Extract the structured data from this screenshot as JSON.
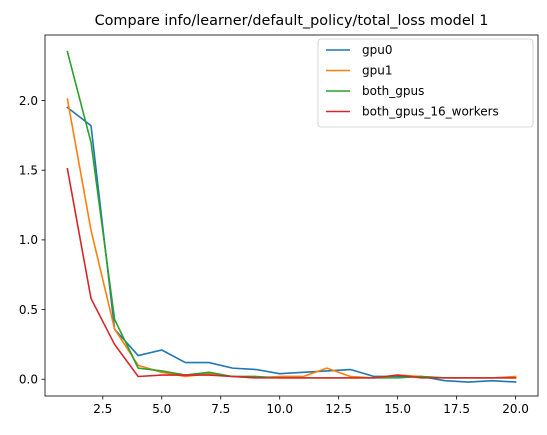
{
  "chart_data": {
    "type": "line",
    "title": "Compare info/learner/default_policy/total_loss model 1",
    "xlabel": "",
    "ylabel": "",
    "xlim": [
      0.05,
      20.95
    ],
    "ylim": [
      -0.12,
      2.47
    ],
    "xticks": [
      2.5,
      5.0,
      7.5,
      10.0,
      12.5,
      15.0,
      17.5,
      20.0
    ],
    "xtick_labels": [
      "2.5",
      "5.0",
      "7.5",
      "10.0",
      "12.5",
      "15.0",
      "17.5",
      "20.0"
    ],
    "yticks": [
      0.0,
      0.5,
      1.0,
      1.5,
      2.0
    ],
    "ytick_labels": [
      "0.0",
      "0.5",
      "1.0",
      "1.5",
      "2.0"
    ],
    "grid": false,
    "legend_position": "top-right",
    "x": [
      1,
      2,
      3,
      4,
      5,
      6,
      7,
      8,
      9,
      10,
      11,
      12,
      13,
      14,
      15,
      16,
      17,
      18,
      19,
      20
    ],
    "series": [
      {
        "name": "gpu0",
        "color": "#1f77b4",
        "values": [
          1.95,
          1.82,
          0.36,
          0.17,
          0.21,
          0.12,
          0.12,
          0.08,
          0.07,
          0.04,
          0.05,
          0.06,
          0.07,
          0.02,
          0.02,
          0.02,
          -0.01,
          -0.02,
          -0.01,
          -0.02
        ]
      },
      {
        "name": "gpu1",
        "color": "#ff7f0e",
        "values": [
          2.01,
          1.07,
          0.36,
          0.1,
          0.05,
          0.02,
          0.04,
          0.02,
          0.01,
          0.02,
          0.02,
          0.08,
          0.02,
          0.01,
          0.03,
          0.02,
          0.01,
          0.01,
          0.01,
          0.02
        ]
      },
      {
        "name": "both_gpus",
        "color": "#2ca02c",
        "values": [
          2.35,
          1.7,
          0.43,
          0.08,
          0.06,
          0.03,
          0.05,
          0.02,
          0.02,
          0.01,
          0.01,
          0.01,
          0.01,
          0.01,
          0.01,
          0.02,
          0.01,
          0.01,
          0.01,
          0.01
        ]
      },
      {
        "name": "both_gpus_16_workers",
        "color": "#d62728",
        "values": [
          1.51,
          0.58,
          0.25,
          0.02,
          0.03,
          0.03,
          0.03,
          0.02,
          0.01,
          0.01,
          0.01,
          0.01,
          0.01,
          0.01,
          0.03,
          0.01,
          0.01,
          0.01,
          0.01,
          0.01
        ]
      }
    ]
  }
}
